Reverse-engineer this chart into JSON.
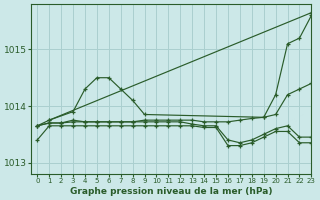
{
  "title": "Graphe pression niveau de la mer (hPa)",
  "bg_color": "#cce8e8",
  "grid_color": "#aacfcf",
  "line_color": "#2a5c2a",
  "xlim": [
    -0.5,
    23
  ],
  "ylim": [
    1012.8,
    1015.8
  ],
  "yticks": [
    1013,
    1014,
    1015
  ],
  "xticks": [
    0,
    1,
    2,
    3,
    4,
    5,
    6,
    7,
    8,
    9,
    10,
    11,
    12,
    13,
    14,
    15,
    16,
    17,
    18,
    19,
    20,
    21,
    22,
    23
  ],
  "lines": [
    {
      "x": [
        1,
        23
      ],
      "y": [
        1013.75,
        1015.65
      ]
    },
    {
      "x": [
        0,
        1,
        3,
        4,
        5,
        6,
        7,
        8,
        9,
        19,
        20,
        21,
        22,
        23
      ],
      "y": [
        1013.65,
        1013.75,
        1013.9,
        1014.3,
        1014.5,
        1014.5,
        1014.3,
        1014.1,
        1013.85,
        1013.8,
        1014.2,
        1015.1,
        1015.2,
        1015.6
      ]
    },
    {
      "x": [
        0,
        1,
        2,
        3,
        4,
        5,
        6,
        7,
        8,
        9,
        10,
        11,
        12,
        13,
        14,
        15,
        16,
        17,
        18,
        19,
        20,
        21,
        22,
        23
      ],
      "y": [
        1013.65,
        1013.7,
        1013.7,
        1013.75,
        1013.72,
        1013.72,
        1013.72,
        1013.72,
        1013.72,
        1013.75,
        1013.75,
        1013.75,
        1013.75,
        1013.75,
        1013.72,
        1013.72,
        1013.72,
        1013.75,
        1013.78,
        1013.8,
        1013.85,
        1014.2,
        1014.3,
        1014.4
      ]
    },
    {
      "x": [
        0,
        1,
        2,
        3,
        4,
        5,
        6,
        7,
        8,
        9,
        10,
        11,
        12,
        13,
        14,
        15,
        16,
        17,
        18,
        19,
        20,
        21,
        22,
        23
      ],
      "y": [
        1013.65,
        1013.7,
        1013.7,
        1013.72,
        1013.72,
        1013.72,
        1013.72,
        1013.72,
        1013.72,
        1013.72,
        1013.72,
        1013.72,
        1013.72,
        1013.68,
        1013.65,
        1013.65,
        1013.4,
        1013.35,
        1013.4,
        1013.5,
        1013.6,
        1013.65,
        1013.45,
        1013.45
      ]
    },
    {
      "x": [
        0,
        1,
        2,
        3,
        4,
        5,
        6,
        7,
        8,
        9,
        10,
        11,
        12,
        13,
        14,
        15,
        16,
        17,
        18,
        19,
        20,
        21,
        22,
        23
      ],
      "y": [
        1013.4,
        1013.65,
        1013.65,
        1013.65,
        1013.65,
        1013.65,
        1013.65,
        1013.65,
        1013.65,
        1013.65,
        1013.65,
        1013.65,
        1013.65,
        1013.65,
        1013.62,
        1013.62,
        1013.3,
        1013.3,
        1013.35,
        1013.45,
        1013.55,
        1013.55,
        1013.35,
        1013.35
      ]
    }
  ]
}
